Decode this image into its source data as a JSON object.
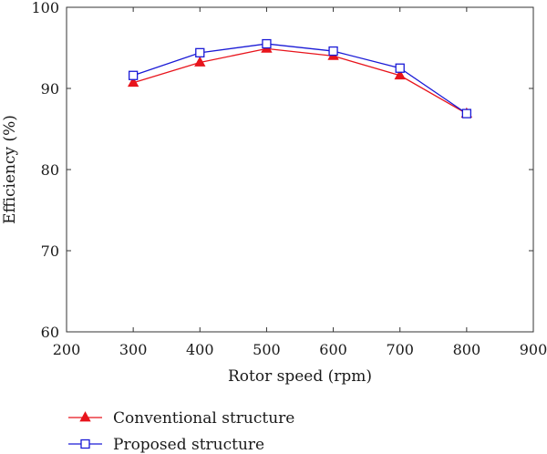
{
  "chart_data": {
    "type": "line",
    "title": "",
    "xlabel": "Rotor speed (rpm)",
    "ylabel": "Efficiency (%)",
    "xlim": [
      200,
      900
    ],
    "ylim": [
      60,
      100
    ],
    "xticks": [
      200,
      300,
      400,
      500,
      600,
      700,
      800,
      900
    ],
    "yticks": [
      60,
      70,
      80,
      90,
      100
    ],
    "x": [
      300,
      400,
      500,
      600,
      700,
      800
    ],
    "grid": false,
    "legend_position": "bottom-left",
    "series": [
      {
        "name": "Conventional structure",
        "color": "#e8141c",
        "marker": "filled-triangle",
        "values": [
          90.7,
          93.2,
          94.9,
          94.0,
          91.6,
          86.9
        ]
      },
      {
        "name": "Proposed structure",
        "color": "#1a1ad6",
        "marker": "open-square",
        "values": [
          91.6,
          94.4,
          95.5,
          94.6,
          92.5,
          86.9
        ]
      }
    ]
  }
}
